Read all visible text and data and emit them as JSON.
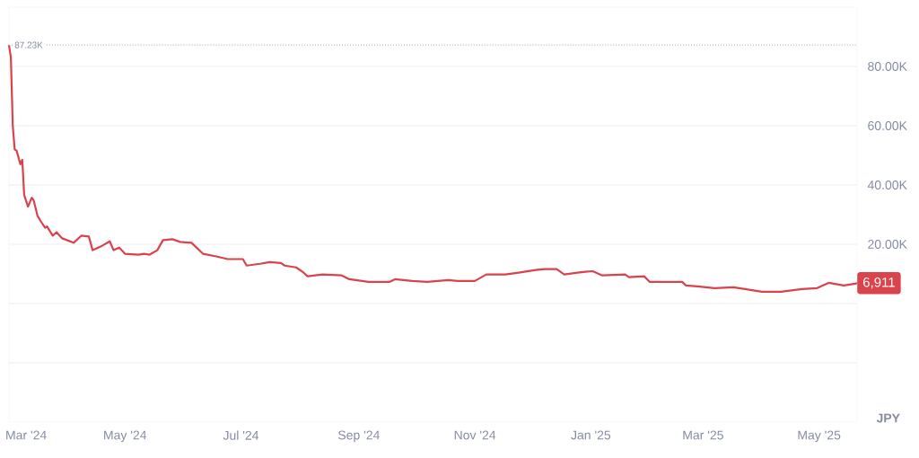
{
  "chart_data": {
    "type": "line",
    "ylabel": "JPY",
    "x": [
      "2024-03-01",
      "2024-03-02",
      "2024-03-03",
      "2024-03-04",
      "2024-03-05",
      "2024-03-07",
      "2024-03-08",
      "2024-03-09",
      "2024-03-11",
      "2024-03-13",
      "2024-03-14",
      "2024-03-16",
      "2024-03-18",
      "2024-03-20",
      "2024-03-21",
      "2024-03-24",
      "2024-03-26",
      "2024-03-29",
      "2024-04-04",
      "2024-04-08",
      "2024-04-12",
      "2024-04-14",
      "2024-04-19",
      "2024-04-23",
      "2024-04-25",
      "2024-04-28",
      "2024-05-01",
      "2024-05-08",
      "2024-05-11",
      "2024-05-14",
      "2024-05-18",
      "2024-05-21",
      "2024-05-26",
      "2024-05-30",
      "2024-06-05",
      "2024-06-11",
      "2024-06-18",
      "2024-06-24",
      "2024-07-02",
      "2024-07-04",
      "2024-07-11",
      "2024-07-16",
      "2024-07-22",
      "2024-07-24",
      "2024-07-30",
      "2024-08-03",
      "2024-08-05",
      "2024-08-13",
      "2024-08-23",
      "2024-08-27",
      "2024-09-06",
      "2024-09-17",
      "2024-09-20",
      "2024-09-29",
      "2024-10-07",
      "2024-10-18",
      "2024-10-23",
      "2024-11-01",
      "2024-11-07",
      "2024-11-17",
      "2024-11-24",
      "2024-12-03",
      "2024-12-08",
      "2024-12-14",
      "2024-12-18",
      "2024-12-25",
      "2024-12-29",
      "2025-01-02",
      "2025-01-07",
      "2025-01-19",
      "2025-01-21",
      "2025-01-29",
      "2025-02-01",
      "2025-02-18",
      "2025-02-20",
      "2025-02-26",
      "2025-03-07",
      "2025-03-17",
      "2025-04-01",
      "2025-04-11",
      "2025-04-22",
      "2025-04-30",
      "2025-05-06",
      "2025-05-14",
      "2025-05-20",
      "2025-05-21"
    ],
    "series": [
      {
        "color": "#d9434b",
        "values": [
          87230,
          83000,
          60000,
          52000,
          51600,
          47000,
          48500,
          36600,
          32700,
          35700,
          34800,
          29600,
          27500,
          25600,
          26000,
          22900,
          24100,
          22000,
          20500,
          22900,
          22600,
          18000,
          19500,
          21000,
          18000,
          18900,
          16800,
          16500,
          16800,
          16500,
          18000,
          21400,
          21700,
          20800,
          20500,
          16800,
          15900,
          15000,
          15000,
          12800,
          13400,
          14000,
          13700,
          12800,
          12200,
          10400,
          9200,
          9800,
          9500,
          8200,
          7300,
          7300,
          8200,
          7600,
          7300,
          7900,
          7600,
          7600,
          9800,
          9800,
          10400,
          11300,
          11600,
          11600,
          9800,
          10400,
          10700,
          10900,
          9500,
          9800,
          8900,
          9200,
          7300,
          7300,
          6100,
          5800,
          5200,
          5500,
          4000,
          4000,
          4900,
          5200,
          7000,
          6100,
          6700,
          6911
        ]
      }
    ],
    "xlim": [
      "2024-03-01",
      "2025-05-21"
    ],
    "xticks": [
      {
        "value": "2024-03-01",
        "label": "Mar '24"
      },
      {
        "value": "2024-05-01",
        "label": "May '24"
      },
      {
        "value": "2024-07-01",
        "label": "Jul '24"
      },
      {
        "value": "2024-09-01",
        "label": "Sep '24"
      },
      {
        "value": "2024-11-01",
        "label": "Nov '24"
      },
      {
        "value": "2025-01-01",
        "label": "Jan '25"
      },
      {
        "value": "2025-03-01",
        "label": "Mar '25"
      },
      {
        "value": "2025-05-01",
        "label": "May '25"
      }
    ],
    "ylim": [
      -40000,
      100000
    ],
    "yticks": [
      {
        "value": -20000,
        "label": null
      },
      {
        "value": 0,
        "label": null
      },
      {
        "value": 20000,
        "label": "20.00K"
      },
      {
        "value": 40000,
        "label": "40.00K"
      },
      {
        "value": 60000,
        "label": "60.00K"
      },
      {
        "value": 80000,
        "label": "80.00K"
      }
    ],
    "grid": "y",
    "ref_lines": [
      {
        "axis": "y",
        "value": 87230,
        "label": "87.23K",
        "line_style": "dotted",
        "color": "#9aa0b0"
      }
    ],
    "annotations": [
      {
        "text": "6,911",
        "x": "2025-05-21",
        "y": 6911
      }
    ]
  }
}
